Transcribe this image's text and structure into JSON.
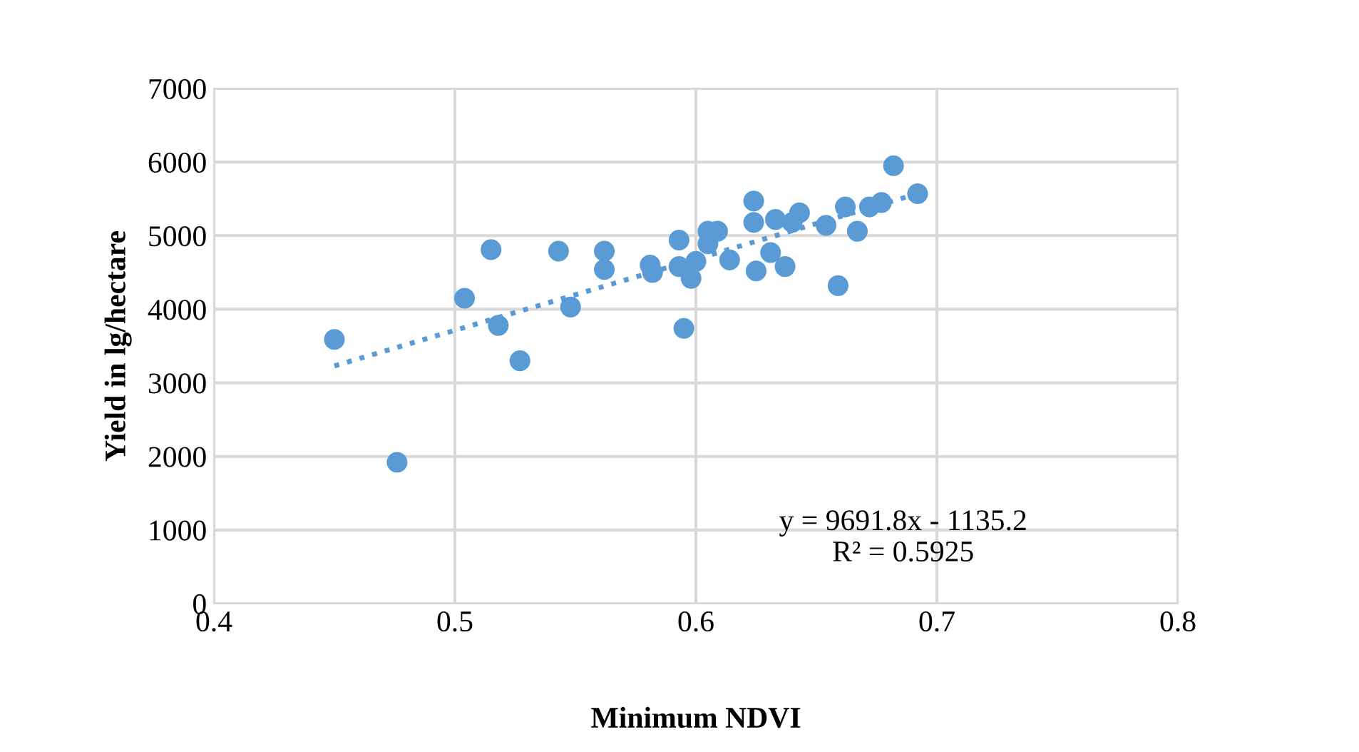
{
  "chart_data": {
    "type": "scatter",
    "xlabel": "Minimum NDVI",
    "ylabel": "Yield in lg/hectare",
    "xlim": [
      0.4,
      0.8
    ],
    "xticks": [
      0.4,
      0.5,
      0.6,
      0.7,
      0.8
    ],
    "ylim": [
      0,
      7000
    ],
    "yticks": [
      0,
      1000,
      2000,
      3000,
      4000,
      5000,
      6000,
      7000
    ],
    "grid": true,
    "series": [
      {
        "marker": "circle",
        "color": "#5b9bd5",
        "x": [
          0.45,
          0.476,
          0.504,
          0.515,
          0.518,
          0.527,
          0.543,
          0.548,
          0.562,
          0.562,
          0.581,
          0.582,
          0.593,
          0.593,
          0.595,
          0.598,
          0.6,
          0.605,
          0.605,
          0.609,
          0.614,
          0.624,
          0.624,
          0.625,
          0.631,
          0.633,
          0.637,
          0.64,
          0.643,
          0.654,
          0.659,
          0.662,
          0.667,
          0.672,
          0.677,
          0.682,
          0.692
        ],
        "values": [
          3590,
          1920,
          4150,
          4810,
          3780,
          3300,
          4790,
          4030,
          4790,
          4540,
          4600,
          4500,
          4940,
          4580,
          3740,
          4420,
          4650,
          5060,
          4890,
          5060,
          4670,
          5470,
          5180,
          4520,
          4770,
          5220,
          4580,
          5180,
          5310,
          5140,
          4320,
          5390,
          5060,
          5390,
          5450,
          5950,
          5570
        ]
      },
      {
        "type": "line",
        "color": "#5b9bd5",
        "line_style": "dotted",
        "x": [
          0.45,
          0.692
        ],
        "values": [
          3230,
          5570
        ]
      }
    ],
    "annotations": [
      "y = 9691.8x - 1135.2\nR² = 0.5925"
    ]
  }
}
